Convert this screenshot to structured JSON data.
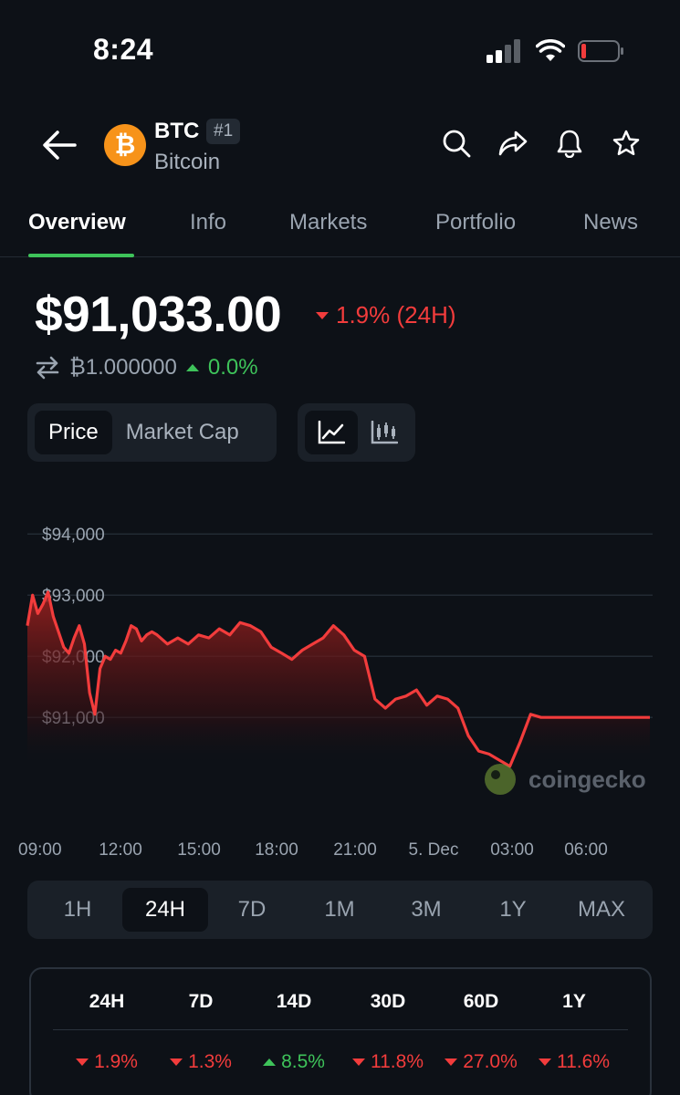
{
  "status_bar": {
    "time": "8:24"
  },
  "header": {
    "coin_symbol": "BTC",
    "rank": "#1",
    "coin_name": "Bitcoin",
    "logo_glyph": "₿",
    "actions": [
      "search-icon",
      "share-icon",
      "bell-icon",
      "star-icon"
    ]
  },
  "tabs": [
    "Overview",
    "Info",
    "Markets",
    "Portfolio",
    "News"
  ],
  "active_tab": "Overview",
  "price": {
    "value": "$91,033.00",
    "change": "1.9% (24H)",
    "btc_value": "₿1.000000",
    "btc_change": "0.0%"
  },
  "chart_toggle": {
    "price": "Price",
    "market_cap": "Market Cap",
    "active": "Price"
  },
  "chart_type": {
    "active": "line"
  },
  "chart_data": {
    "type": "area",
    "color": "#f23c3c",
    "y_ticks": [
      "$94,000",
      "$93,000",
      "$92,000",
      "$91,000"
    ],
    "y_tick_values": [
      94000,
      93000,
      92000,
      91000
    ],
    "x_ticks": [
      "09:00",
      "12:00",
      "15:00",
      "18:00",
      "21:00",
      "5. Dec",
      "03:00",
      "06:00"
    ],
    "ylim": [
      89600,
      94600
    ],
    "grid": true,
    "watermark": "coingecko",
    "x_hours": [
      0,
      0.2,
      0.4,
      0.6,
      0.8,
      1.0,
      1.2,
      1.4,
      1.6,
      1.8,
      2.0,
      2.2,
      2.4,
      2.6,
      2.8,
      3.0,
      3.2,
      3.4,
      3.6,
      3.8,
      4.0,
      4.2,
      4.4,
      4.6,
      4.8,
      5.0,
      5.4,
      5.8,
      6.2,
      6.6,
      7.0,
      7.4,
      7.8,
      8.2,
      8.6,
      9.0,
      9.4,
      9.8,
      10.2,
      10.6,
      11.0,
      11.4,
      11.8,
      12.2,
      12.6,
      13.0,
      13.4,
      13.8,
      14.2,
      14.6,
      15.0,
      15.4,
      15.8,
      16.2,
      16.6,
      17.0,
      17.4,
      17.8,
      18.2,
      18.6,
      19.0,
      19.4,
      19.8,
      20.2,
      20.6,
      21.0,
      21.4,
      21.8,
      22.2,
      22.6,
      23.0,
      23.4,
      23.8,
      24.0
    ],
    "prices": [
      92500,
      93000,
      92700,
      92850,
      93050,
      92650,
      92400,
      92150,
      92050,
      92300,
      92500,
      92200,
      91400,
      91050,
      91800,
      92000,
      91950,
      92100,
      92050,
      92250,
      92500,
      92450,
      92250,
      92350,
      92400,
      92350,
      92200,
      92300,
      92200,
      92350,
      92300,
      92450,
      92350,
      92550,
      92500,
      92400,
      92150,
      92050,
      91950,
      92100,
      92200,
      92300,
      92500,
      92350,
      92100,
      92000,
      91300,
      91150,
      91300,
      91350,
      91450,
      91200,
      91350,
      91300,
      91150,
      90700,
      90450,
      90400,
      90300,
      90200,
      90600,
      91050,
      91000,
      91000,
      91000,
      91000,
      91000,
      91000,
      91000,
      91000,
      91000,
      91000,
      91000,
      91000
    ]
  },
  "time_ranges": [
    "1H",
    "24H",
    "7D",
    "1M",
    "3M",
    "1Y",
    "MAX"
  ],
  "active_range": "24H",
  "performance": [
    {
      "period": "24H",
      "change": "1.9%",
      "direction": "down"
    },
    {
      "period": "7D",
      "change": "1.3%",
      "direction": "down"
    },
    {
      "period": "14D",
      "change": "8.5%",
      "direction": "up"
    },
    {
      "period": "30D",
      "change": "11.8%",
      "direction": "down"
    },
    {
      "period": "60D",
      "change": "27.0%",
      "direction": "down"
    },
    {
      "period": "1Y",
      "change": "11.6%",
      "direction": "down"
    }
  ],
  "colors": {
    "up": "#3ec35a",
    "down": "#f23c3c",
    "background": "#0d1117",
    "accent": "#3ec35a"
  }
}
